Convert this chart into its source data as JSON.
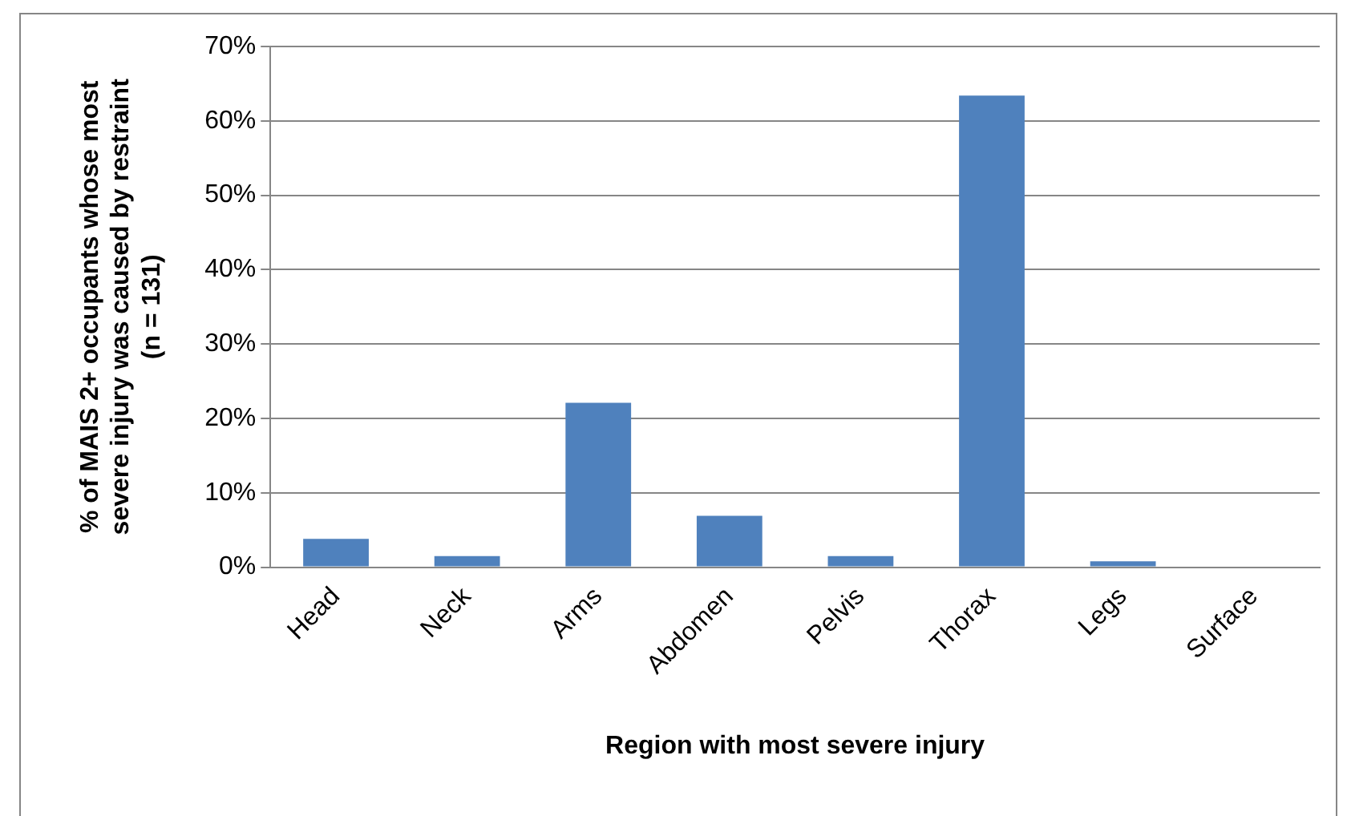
{
  "chart_data": {
    "type": "bar",
    "xlabel": "Region with most severe injury",
    "ylabel": "% of MAIS 2+ occupants whose most\nsevere injury was caused by restraint\n(n = 131)",
    "categories": [
      "Head",
      "Neck",
      "Arms",
      "Abdomen",
      "Pelvis",
      "Thorax",
      "Legs",
      "Surface"
    ],
    "values": [
      3.8,
      1.5,
      22.1,
      6.9,
      1.5,
      63.4,
      0.8,
      0
    ],
    "color": "#4f81bd",
    "ylim": [
      0,
      70
    ],
    "yticks": [
      {
        "value": 0,
        "label": "0%"
      },
      {
        "value": 10,
        "label": "10%"
      },
      {
        "value": 20,
        "label": "20%"
      },
      {
        "value": 30,
        "label": "30%"
      },
      {
        "value": 40,
        "label": "40%"
      },
      {
        "value": 50,
        "label": "50%"
      },
      {
        "value": 60,
        "label": "60%"
      },
      {
        "value": 70,
        "label": "70%"
      }
    ],
    "grid": "y",
    "legend": false
  }
}
